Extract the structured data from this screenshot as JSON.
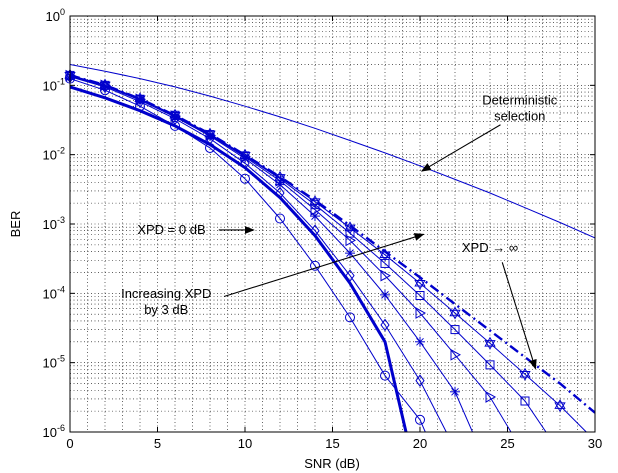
{
  "chart_data": {
    "type": "line",
    "title": "",
    "xlabel": "SNR (dB)",
    "ylabel": "BER",
    "xlim": [
      0,
      30
    ],
    "ylim": [
      1e-06,
      1
    ],
    "yscale": "log",
    "grid": true,
    "x_ticks": [
      0,
      5,
      10,
      15,
      20,
      25,
      30
    ],
    "x_tick_labels": [
      "0",
      "5",
      "10",
      "15",
      "20",
      "25",
      "30"
    ],
    "y_ticks": [
      1e-06,
      1e-05,
      0.0001,
      0.001,
      0.01,
      0.1,
      1
    ],
    "y_tick_labels": [
      {
        "base": "10",
        "exp": "-6"
      },
      {
        "base": "10",
        "exp": "-5"
      },
      {
        "base": "10",
        "exp": "-4"
      },
      {
        "base": "10",
        "exp": "-3"
      },
      {
        "base": "10",
        "exp": "-2"
      },
      {
        "base": "10",
        "exp": "-1"
      },
      {
        "base": "10",
        "exp": "0"
      }
    ],
    "color": "#0000cc",
    "series": [
      {
        "style": "deterministic",
        "points": [
          [
            0,
            0.2
          ],
          [
            2,
            0.16
          ],
          [
            4,
            0.125
          ],
          [
            6,
            0.095
          ],
          [
            8,
            0.07
          ],
          [
            10,
            0.05
          ],
          [
            12,
            0.035
          ],
          [
            14,
            0.024
          ],
          [
            16,
            0.016
          ],
          [
            18,
            0.0106
          ],
          [
            20,
            0.0069
          ],
          [
            22,
            0.0044
          ],
          [
            24,
            0.0028
          ],
          [
            26,
            0.00172
          ],
          [
            28,
            0.00105
          ],
          [
            30,
            0.00063
          ]
        ]
      },
      {
        "style": "bold",
        "marker": "none",
        "points": [
          [
            0,
            0.095
          ],
          [
            2,
            0.066
          ],
          [
            4,
            0.043
          ],
          [
            6,
            0.026
          ],
          [
            8,
            0.014
          ],
          [
            10,
            0.0065
          ],
          [
            12,
            0.0024
          ],
          [
            14,
            0.00068
          ],
          [
            16,
            0.00014
          ],
          [
            18,
            2e-05
          ],
          [
            19.2,
            1e-06
          ]
        ]
      },
      {
        "style": "thin",
        "marker": "circle",
        "points": [
          [
            0,
            0.125
          ],
          [
            2,
            0.085
          ],
          [
            4,
            0.05
          ],
          [
            6,
            0.026
          ],
          [
            8,
            0.0125
          ],
          [
            10,
            0.0045
          ],
          [
            12,
            0.0012
          ],
          [
            14,
            0.00025
          ],
          [
            16,
            4.5e-05
          ],
          [
            18,
            6.5e-06
          ],
          [
            20,
            1.5e-06
          ],
          [
            20.3,
            1e-06
          ]
        ]
      },
      {
        "style": "thin",
        "marker": "diamond",
        "points": [
          [
            0,
            0.133
          ],
          [
            2,
            0.095
          ],
          [
            4,
            0.058
          ],
          [
            6,
            0.033
          ],
          [
            8,
            0.017
          ],
          [
            10,
            0.0075
          ],
          [
            12,
            0.0028
          ],
          [
            14,
            0.0008
          ],
          [
            16,
            0.00018
          ],
          [
            18,
            3.5e-05
          ],
          [
            20,
            5.5e-06
          ],
          [
            21.5,
            1e-06
          ]
        ]
      },
      {
        "style": "thin",
        "marker": "star",
        "points": [
          [
            0,
            0.136
          ],
          [
            2,
            0.098
          ],
          [
            4,
            0.061
          ],
          [
            6,
            0.035
          ],
          [
            8,
            0.0185
          ],
          [
            10,
            0.0088
          ],
          [
            12,
            0.0037
          ],
          [
            14,
            0.0013
          ],
          [
            16,
            0.00038
          ],
          [
            18,
            9.5e-05
          ],
          [
            20,
            2e-05
          ],
          [
            22,
            3.8e-06
          ],
          [
            23,
            1e-06
          ]
        ]
      },
      {
        "style": "thin",
        "marker": "triangle",
        "points": [
          [
            0,
            0.138
          ],
          [
            2,
            0.1
          ],
          [
            4,
            0.063
          ],
          [
            6,
            0.036
          ],
          [
            8,
            0.019
          ],
          [
            10,
            0.0093
          ],
          [
            12,
            0.0042
          ],
          [
            14,
            0.0016
          ],
          [
            16,
            0.00058
          ],
          [
            18,
            0.00018
          ],
          [
            20,
            5.2e-05
          ],
          [
            22,
            1.3e-05
          ],
          [
            24,
            3.2e-06
          ],
          [
            25.2,
            1e-06
          ]
        ]
      },
      {
        "style": "thin",
        "marker": "square",
        "points": [
          [
            0,
            0.139
          ],
          [
            2,
            0.1
          ],
          [
            4,
            0.063
          ],
          [
            6,
            0.037
          ],
          [
            8,
            0.0195
          ],
          [
            10,
            0.0096
          ],
          [
            12,
            0.0045
          ],
          [
            14,
            0.0019
          ],
          [
            16,
            0.00074
          ],
          [
            18,
            0.00027
          ],
          [
            20,
            9.3e-05
          ],
          [
            22,
            3e-05
          ],
          [
            24,
            9.3e-06
          ],
          [
            26,
            2.8e-06
          ],
          [
            27.2,
            1e-06
          ]
        ]
      },
      {
        "style": "thin",
        "marker": "hexagram",
        "points": [
          [
            0,
            0.14
          ],
          [
            2,
            0.101
          ],
          [
            4,
            0.064
          ],
          [
            6,
            0.037
          ],
          [
            8,
            0.0198
          ],
          [
            10,
            0.0098
          ],
          [
            12,
            0.0047
          ],
          [
            14,
            0.0021
          ],
          [
            16,
            0.00088
          ],
          [
            18,
            0.00036
          ],
          [
            20,
            0.00014
          ],
          [
            22,
            5.2e-05
          ],
          [
            24,
            1.9e-05
          ],
          [
            26,
            6.8e-06
          ],
          [
            28,
            2.4e-06
          ],
          [
            29.5,
            1e-06
          ]
        ]
      },
      {
        "style": "dashdot",
        "marker": "none",
        "points": [
          [
            0,
            0.14
          ],
          [
            2,
            0.101
          ],
          [
            4,
            0.064
          ],
          [
            6,
            0.037
          ],
          [
            8,
            0.0199
          ],
          [
            10,
            0.0099
          ],
          [
            12,
            0.0048
          ],
          [
            14,
            0.0022
          ],
          [
            16,
            0.00095
          ],
          [
            18,
            0.0004
          ],
          [
            20,
            0.00017
          ],
          [
            22,
            7e-05
          ],
          [
            24,
            2.9e-05
          ],
          [
            26,
            1.2e-05
          ],
          [
            28,
            5e-06
          ],
          [
            30,
            1.9e-06
          ]
        ]
      }
    ],
    "annotations": [
      {
        "id": "deterministic",
        "lines": [
          "Deterministic",
          "selection"
        ],
        "text_pos": [
          25.7,
          0.046
        ],
        "arrow_from": [
          24.6,
          0.027
        ],
        "arrow_to": [
          20.1,
          0.0058
        ]
      },
      {
        "id": "xpd0",
        "lines": [
          "XPD = 0 dB"
        ],
        "text_pos": [
          5.8,
          0.00082
        ],
        "arrow_from": [
          8.5,
          0.00082
        ],
        "arrow_to": [
          10.5,
          0.00082
        ]
      },
      {
        "id": "increasing",
        "lines": [
          "Increasing XPD",
          "by 3 dB"
        ],
        "text_pos": [
          5.5,
          7.5e-05
        ],
        "arrow_from": [
          8.8,
          9e-05
        ],
        "arrow_to": [
          20.2,
          0.00071
        ]
      },
      {
        "id": "xpdinf",
        "lines": [
          "XPD → ∞"
        ],
        "text_pos": [
          24,
          0.00045
        ],
        "arrow_from": [
          24.7,
          0.00028
        ],
        "arrow_to": [
          26.6,
          8.2e-06
        ]
      }
    ]
  }
}
